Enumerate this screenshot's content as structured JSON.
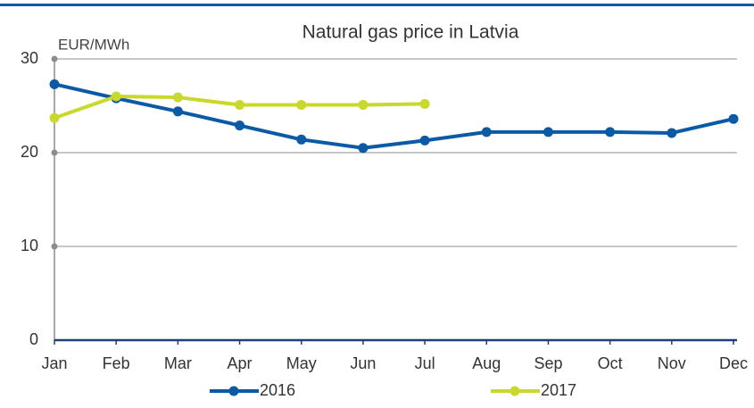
{
  "chart_data": {
    "type": "line",
    "title": "Natural gas price in Latvia",
    "y_label": "EUR/MWh",
    "categories": [
      "Jan",
      "Feb",
      "Mar",
      "Apr",
      "May",
      "Jun",
      "Jul",
      "Aug",
      "Sep",
      "Oct",
      "Nov",
      "Dec"
    ],
    "series": [
      {
        "name": "2016",
        "color": "#0b5aa6",
        "values": [
          27.3,
          25.8,
          24.4,
          22.9,
          21.4,
          20.5,
          21.3,
          22.2,
          22.2,
          22.2,
          22.1,
          23.6
        ]
      },
      {
        "name": "2017",
        "color": "#c9d82b",
        "values": [
          23.7,
          26.0,
          25.9,
          25.1,
          25.1,
          25.1,
          25.2,
          null,
          null,
          null,
          null,
          null
        ]
      }
    ],
    "ylim": [
      0,
      30
    ],
    "yticks": [
      0,
      10,
      20,
      30
    ],
    "grid": true,
    "legend": "bottom"
  }
}
